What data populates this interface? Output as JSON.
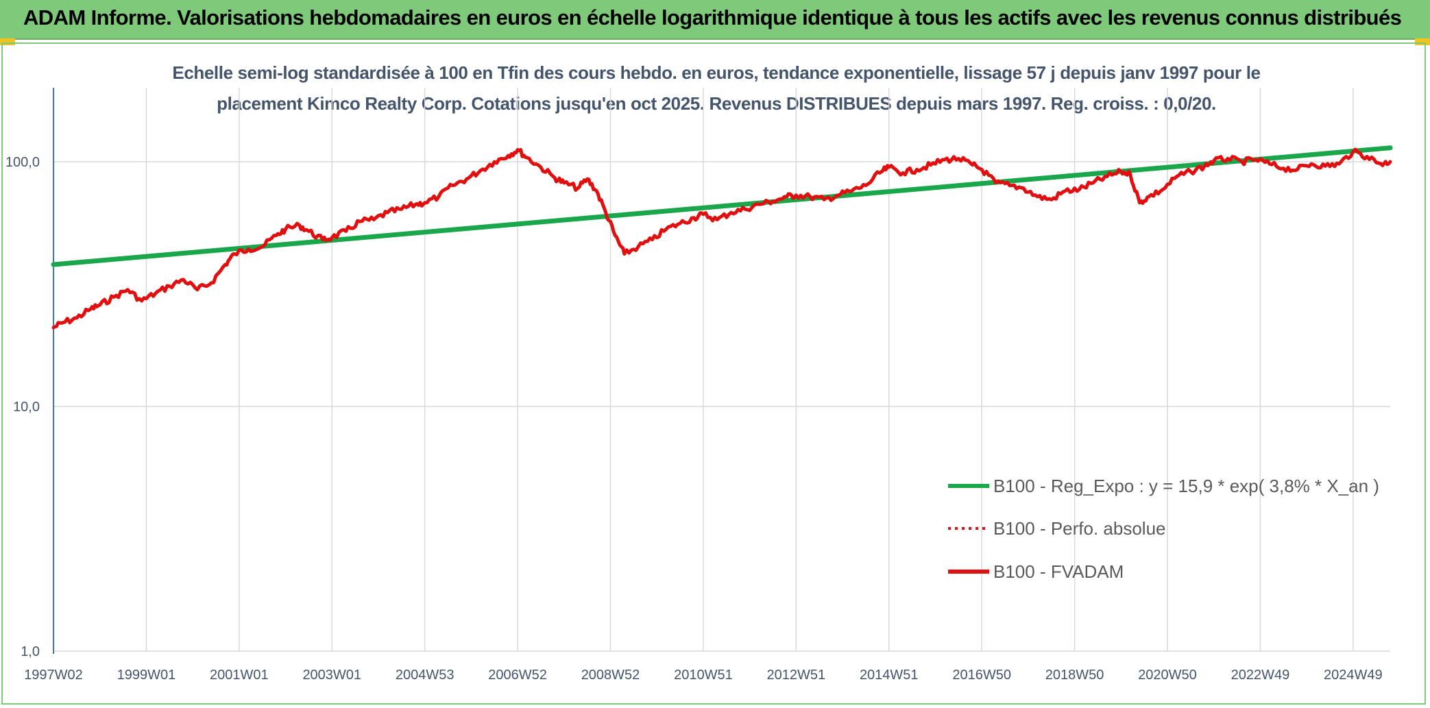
{
  "banner": {
    "title": "ADAM Informe. Valorisations hebdomadaires en euros en échelle logarithmique identique à tous les actifs avec les revenus connus distribués"
  },
  "colors": {
    "banner_bg": "#7fc97a",
    "regression": "#1aa64a",
    "fvadam": "#e01010",
    "perfo": "#e01010",
    "grid": "#d9d9d9",
    "text": "#44546a"
  },
  "chart_data": {
    "type": "line",
    "title": "Echelle semi-log standardisée à 100 en Tfin des cours hebdo. en euros, tendance exponentielle, lissage 57 j depuis janv 1997 pour le placement Kimco Realty Corp. Cotations jusqu'en oct 2025. Revenus DISTRIBUES depuis mars 1997. Reg. croiss. : 0,0/20.",
    "yscale": "log",
    "ylim": [
      1,
      200
    ],
    "xlim": [
      1997.0,
      2025.8
    ],
    "y_ticks": [
      {
        "value": 1,
        "label": "1,0"
      },
      {
        "value": 10,
        "label": "10,0"
      },
      {
        "value": 100,
        "label": "100,0"
      }
    ],
    "x_ticks": [
      {
        "value": 1997.0,
        "label": "1997W02"
      },
      {
        "value": 1999.0,
        "label": "1999W01"
      },
      {
        "value": 2001.0,
        "label": "2001W01"
      },
      {
        "value": 2003.0,
        "label": "2003W01"
      },
      {
        "value": 2005.0,
        "label": "2004W53"
      },
      {
        "value": 2007.0,
        "label": "2006W52"
      },
      {
        "value": 2009.0,
        "label": "2008W52"
      },
      {
        "value": 2011.0,
        "label": "2010W51"
      },
      {
        "value": 2013.0,
        "label": "2012W51"
      },
      {
        "value": 2015.0,
        "label": "2014W51"
      },
      {
        "value": 2017.0,
        "label": "2016W50"
      },
      {
        "value": 2019.0,
        "label": "2018W50"
      },
      {
        "value": 2021.0,
        "label": "2020W50"
      },
      {
        "value": 2023.0,
        "label": "2022W49"
      },
      {
        "value": 2025.0,
        "label": "2024W49"
      }
    ],
    "legend_position": "bottom-right",
    "series": [
      {
        "name": "B100 - Reg_Expo : y = 15,9 * exp( 3,8% *  X_an )",
        "style": "solid",
        "x": [
          1997.0,
          2025.8
        ],
        "y": [
          38,
          114
        ]
      },
      {
        "name": "B100 - Perfo. absolue",
        "style": "dotted",
        "x": [],
        "y": []
      },
      {
        "name": "B100 - FVADAM",
        "style": "solid",
        "x": [
          1997.0,
          1997.2,
          1997.5,
          1997.8,
          1998.0,
          1998.3,
          1998.6,
          1998.9,
          1999.2,
          1999.5,
          1999.8,
          2000.1,
          2000.4,
          2000.7,
          2000.9,
          2001.2,
          2001.5,
          2001.8,
          2002.0,
          2002.3,
          2002.5,
          2002.8,
          2003.0,
          2003.3,
          2003.6,
          2003.9,
          2004.2,
          2004.5,
          2004.8,
          2005.0,
          2005.3,
          2005.6,
          2005.9,
          2006.2,
          2006.5,
          2006.8,
          2007.0,
          2007.2,
          2007.5,
          2007.8,
          2008.0,
          2008.3,
          2008.5,
          2008.7,
          2008.9,
          2009.1,
          2009.3,
          2009.6,
          2009.9,
          2010.2,
          2010.5,
          2010.8,
          2011.0,
          2011.3,
          2011.6,
          2011.9,
          2012.2,
          2012.5,
          2012.8,
          2013.0,
          2013.3,
          2013.6,
          2013.9,
          2014.2,
          2014.5,
          2014.8,
          2015.0,
          2015.3,
          2015.6,
          2015.9,
          2016.2,
          2016.5,
          2016.8,
          2017.0,
          2017.3,
          2017.6,
          2017.9,
          2018.2,
          2018.5,
          2018.8,
          2019.1,
          2019.4,
          2019.7,
          2020.0,
          2020.2,
          2020.4,
          2020.6,
          2020.9,
          2021.2,
          2021.5,
          2021.8,
          2022.0,
          2022.3,
          2022.6,
          2022.9,
          2023.2,
          2023.5,
          2023.8,
          2024.1,
          2024.4,
          2024.7,
          2025.0,
          2025.3,
          2025.6,
          2025.8
        ],
        "y": [
          21,
          22,
          23,
          25,
          26,
          28,
          30,
          27,
          29,
          31,
          33,
          30,
          32,
          38,
          42,
          44,
          45,
          50,
          53,
          55,
          52,
          48,
          49,
          52,
          57,
          58,
          62,
          64,
          67,
          68,
          72,
          80,
          85,
          92,
          100,
          106,
          112,
          104,
          95,
          86,
          82,
          78,
          85,
          76,
          62,
          50,
          42,
          45,
          48,
          53,
          56,
          59,
          61,
          58,
          62,
          64,
          67,
          69,
          72,
          73,
          72,
          70,
          73,
          76,
          80,
          90,
          95,
          90,
          93,
          97,
          102,
          103,
          97,
          93,
          82,
          80,
          78,
          72,
          70,
          76,
          77,
          82,
          87,
          91,
          89,
          68,
          72,
          77,
          87,
          91,
          96,
          101,
          103,
          100,
          102,
          98,
          94,
          93,
          98,
          96,
          98,
          110,
          105,
          98,
          100
        ]
      }
    ]
  }
}
